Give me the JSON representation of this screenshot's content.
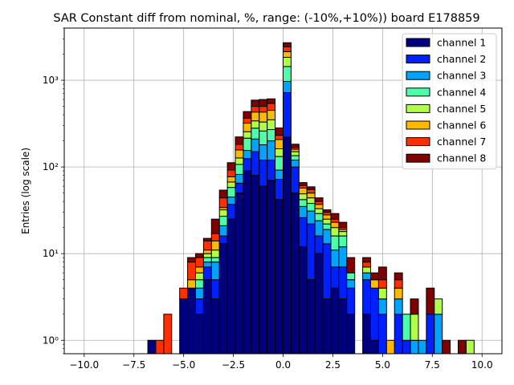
{
  "chart_data": {
    "type": "bar",
    "stacked": true,
    "title": "SAR Constant diff from nominal, %, range: (-10%,+10%)) board E178859",
    "xlabel": "",
    "ylabel": "Entries (log scale)",
    "xlim": [
      -11.0,
      11.0
    ],
    "ylim": [
      0.7,
      4000
    ],
    "yscale": "log",
    "grid": true,
    "legend_position": "top-right",
    "bin_width": 0.4,
    "x_ticks": [
      -10,
      -7.5,
      -5,
      -2.5,
      0,
      2.5,
      5,
      7.5,
      10
    ],
    "x_tick_labels": [
      "−10.0",
      "−7.5",
      "−5.0",
      "−2.5",
      "0.0",
      "2.5",
      "5.0",
      "7.5",
      "10.0"
    ],
    "y_ticks": [
      1,
      10,
      100,
      1000
    ],
    "y_tick_labels": [
      "10⁰",
      "10¹",
      "10²",
      "10³"
    ],
    "bins": [
      -6.8,
      -6.4,
      -6.0,
      -5.6,
      -5.2,
      -4.8,
      -4.4,
      -4.0,
      -3.6,
      -3.2,
      -2.8,
      -2.4,
      -2.0,
      -1.6,
      -1.2,
      -0.8,
      -0.4,
      0.0,
      0.4,
      0.8,
      1.2,
      1.6,
      2.0,
      2.4,
      2.8,
      3.2,
      3.6,
      4.0,
      4.4,
      4.8,
      5.2,
      5.6,
      6.0,
      6.4,
      6.8,
      7.2,
      7.6,
      8.0,
      8.4,
      8.8,
      9.2,
      9.6
    ],
    "series": [
      {
        "name": "channel 1",
        "color": "#00007f",
        "values": [
          1,
          0,
          0,
          0,
          3,
          4,
          2,
          5,
          3,
          13,
          25,
          50,
          90,
          80,
          60,
          70,
          42,
          220,
          50,
          12,
          5,
          10,
          3,
          4,
          3,
          2,
          0,
          2,
          1,
          0,
          0,
          0,
          0,
          0,
          0,
          0,
          0,
          0,
          0,
          0,
          0,
          0
        ]
      },
      {
        "name": "channel 2",
        "color": "#0020ff",
        "values": [
          0,
          0,
          0,
          0,
          0,
          0,
          1,
          2,
          2,
          3,
          12,
          15,
          35,
          70,
          60,
          50,
          30,
          500,
          50,
          14,
          17,
          6,
          10,
          3,
          4,
          2,
          0,
          3,
          3,
          2,
          0,
          2,
          1,
          0,
          0,
          2,
          0,
          0,
          0,
          0,
          0,
          0
        ]
      },
      {
        "name": "channel 3",
        "color": "#00a4ff",
        "values": [
          0,
          0,
          0,
          0,
          0,
          0,
          1,
          1,
          3,
          5,
          8,
          17,
          30,
          60,
          60,
          80,
          20,
          250,
          20,
          9,
          9,
          8,
          6,
          4,
          5,
          1,
          0,
          1,
          0,
          1,
          0,
          1,
          0,
          1,
          1,
          0,
          2,
          0,
          0,
          0,
          0,
          0
        ]
      },
      {
        "name": "channel 4",
        "color": "#4dffa9",
        "values": [
          0,
          0,
          0,
          0,
          0,
          0,
          1,
          1,
          1,
          6,
          13,
          25,
          60,
          70,
          80,
          70,
          40,
          470,
          15,
          7,
          7,
          5,
          3,
          5,
          4,
          1,
          0,
          0,
          0,
          0,
          0,
          0,
          1,
          0,
          0,
          0,
          0,
          0,
          0,
          0,
          0,
          0
        ]
      },
      {
        "name": "channel 5",
        "color": "#b1ff46",
        "values": [
          0,
          0,
          0,
          0,
          0,
          0,
          1,
          1,
          2,
          5,
          9,
          20,
          40,
          60,
          70,
          80,
          30,
          400,
          15,
          7,
          6,
          4,
          3,
          4,
          2,
          0,
          0,
          1,
          0,
          1,
          0,
          0,
          0,
          1,
          0,
          0,
          1,
          0,
          0,
          0,
          1,
          0
        ]
      },
      {
        "name": "channel 6",
        "color": "#ffb900",
        "values": [
          0,
          0,
          0,
          0,
          0,
          1,
          1,
          1,
          3,
          2,
          10,
          30,
          65,
          90,
          100,
          100,
          45,
          300,
          10,
          8,
          6,
          4,
          3,
          3,
          1,
          0,
          0,
          0,
          1,
          0,
          1,
          1,
          0,
          0,
          0,
          0,
          0,
          0,
          0,
          0,
          0,
          0
        ]
      },
      {
        "name": "channel 7",
        "color": "#ff3000",
        "values": [
          0,
          1,
          2,
          0,
          1,
          3,
          2,
          3,
          3,
          10,
          15,
          25,
          45,
          70,
          70,
          90,
          25,
          300,
          8,
          4,
          5,
          3,
          2,
          2,
          1,
          0,
          0,
          1,
          0,
          1,
          0,
          1,
          0,
          0,
          0,
          0,
          0,
          0,
          0,
          0,
          0,
          0
        ]
      },
      {
        "name": "channel 8",
        "color": "#7f0000",
        "values": [
          0,
          0,
          0,
          0,
          0,
          1,
          1,
          1,
          8,
          10,
          20,
          40,
          70,
          90,
          100,
          70,
          50,
          270,
          15,
          5,
          4,
          4,
          2,
          4,
          3,
          3,
          0,
          1,
          1,
          2,
          0,
          1,
          0,
          1,
          0,
          2,
          0,
          1,
          0,
          1,
          0,
          0
        ]
      }
    ]
  }
}
